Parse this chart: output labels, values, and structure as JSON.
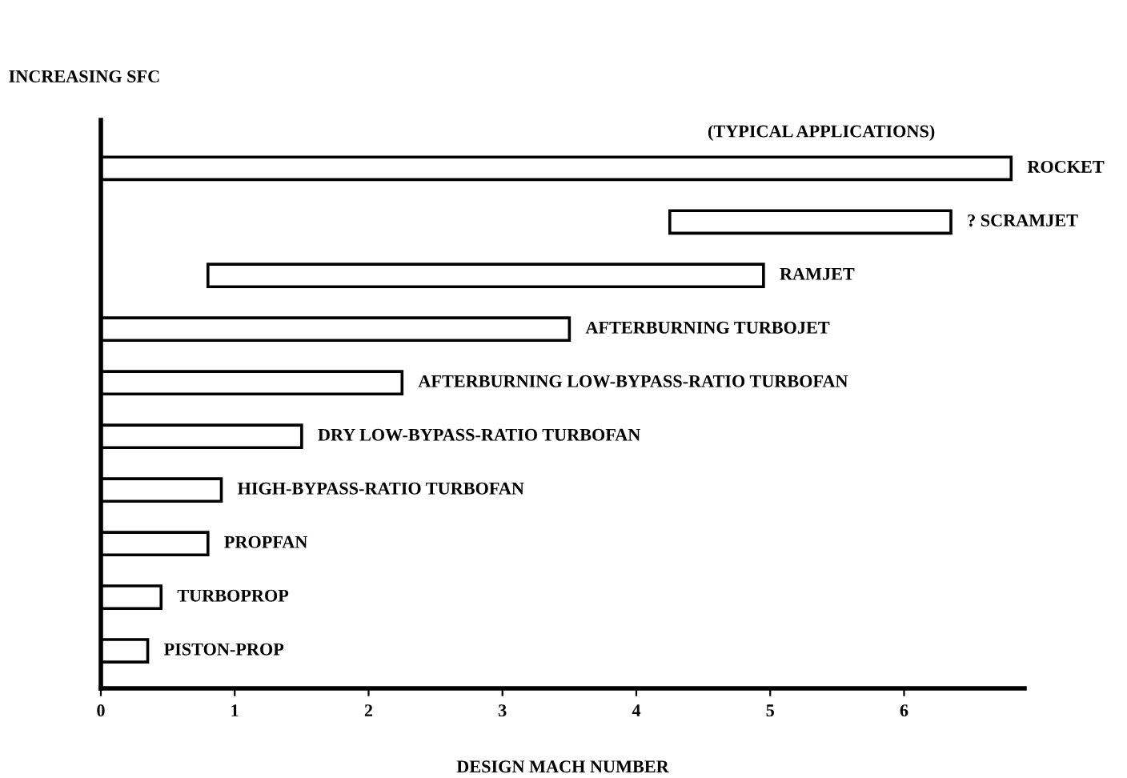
{
  "chart_data": {
    "type": "bar",
    "orientation": "horizontal",
    "xlabel": "DESIGN MACH NUMBER",
    "ylabel": "INCREASING SFC",
    "annotations": [
      "(TYPICAL APPLICATIONS)"
    ],
    "categories": [
      "ROCKET",
      "? SCRAMJET",
      "RAMJET",
      "AFTERBURNING TURBOJET",
      "AFTERBURNING LOW-BYPASS-RATIO TURBOFAN",
      "DRY LOW-BYPASS-RATIO TURBOFAN",
      "HIGH-BYPASS-RATIO TURBOFAN",
      "PROPFAN",
      "TURBOPROP",
      "PISTON-PROP"
    ],
    "base": [
      0,
      4.25,
      0.8,
      0,
      0,
      0,
      0,
      0,
      0,
      0
    ],
    "values": [
      6.8,
      2.1,
      4.15,
      3.5,
      2.25,
      1.5,
      0.9,
      0.8,
      0.45,
      0.35
    ],
    "color": "#ffffff",
    "xlim": [
      0,
      6.9
    ],
    "xticks": [
      0,
      1,
      2,
      3,
      4,
      5,
      6
    ],
    "tick_labels": "x",
    "grid": false,
    "legend": false
  }
}
